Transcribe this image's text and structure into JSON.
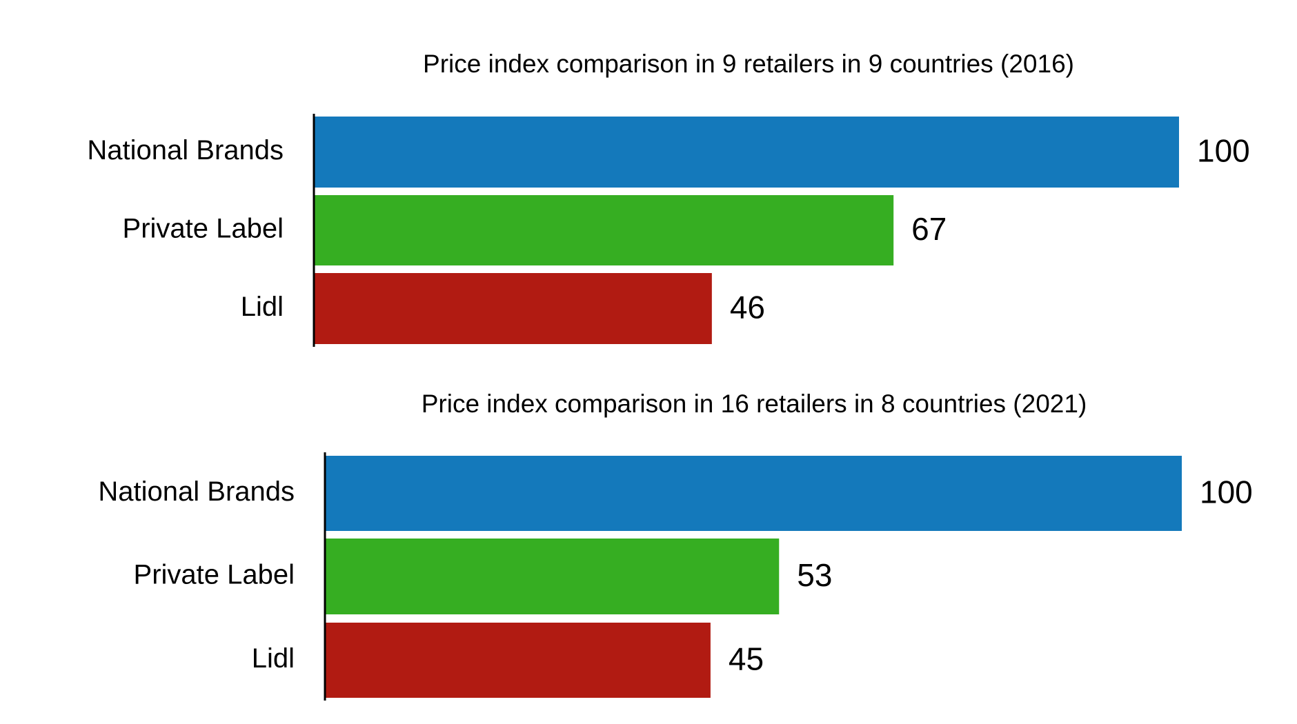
{
  "chart_data": [
    {
      "type": "bar",
      "orientation": "horizontal",
      "title": "Price index comparison in 9 retailers in 9 countries (2016)",
      "categories": [
        "National Brands",
        "Private Label",
        "Lidl"
      ],
      "values": [
        100,
        67,
        46
      ],
      "colors": [
        "#1479bb",
        "#36ae22",
        "#b11b12"
      ]
    },
    {
      "type": "bar",
      "orientation": "horizontal",
      "title": "Price index comparison in 16 retailers in 8 countries (2021)",
      "categories": [
        "National Brands",
        "Private Label",
        "Lidl"
      ],
      "values": [
        100,
        53,
        45
      ],
      "colors": [
        "#1479bb",
        "#36ae22",
        "#b11b12"
      ]
    }
  ]
}
